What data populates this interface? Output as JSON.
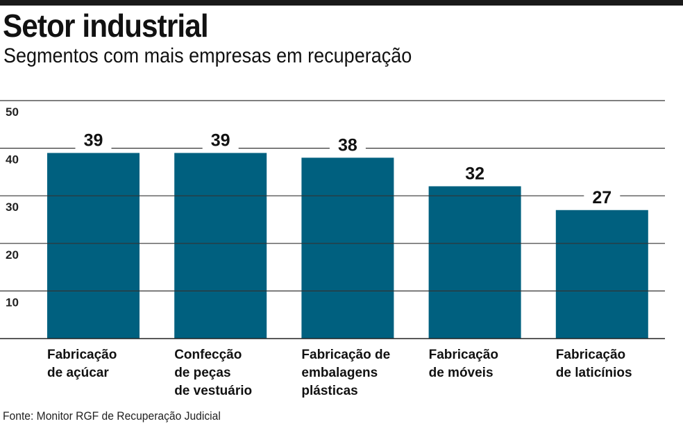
{
  "title": "Setor industrial",
  "subtitle": "Segmentos com mais empresas em recuperação",
  "source": "Fonte: Monitor RGF de Recuperação Judicial",
  "colors": {
    "bar": "#00607f",
    "grid": "#333333"
  },
  "chart_data": {
    "type": "bar",
    "title": "Setor industrial",
    "subtitle": "Segmentos com mais empresas em recuperação",
    "categories": [
      [
        "Fabricação",
        "de açúcar"
      ],
      [
        "Confecção",
        "de peças",
        "de vestuário"
      ],
      [
        "Fabricação de",
        "embalagens",
        "plásticas"
      ],
      [
        "Fabricação",
        "de móveis"
      ],
      [
        "Fabricação",
        "de laticínios"
      ]
    ],
    "values": [
      39,
      39,
      38,
      32,
      27
    ],
    "yticks": [
      10,
      20,
      30,
      40,
      50
    ],
    "ylim": [
      0,
      50
    ],
    "xlabel": "",
    "ylabel": "",
    "grid": true
  }
}
